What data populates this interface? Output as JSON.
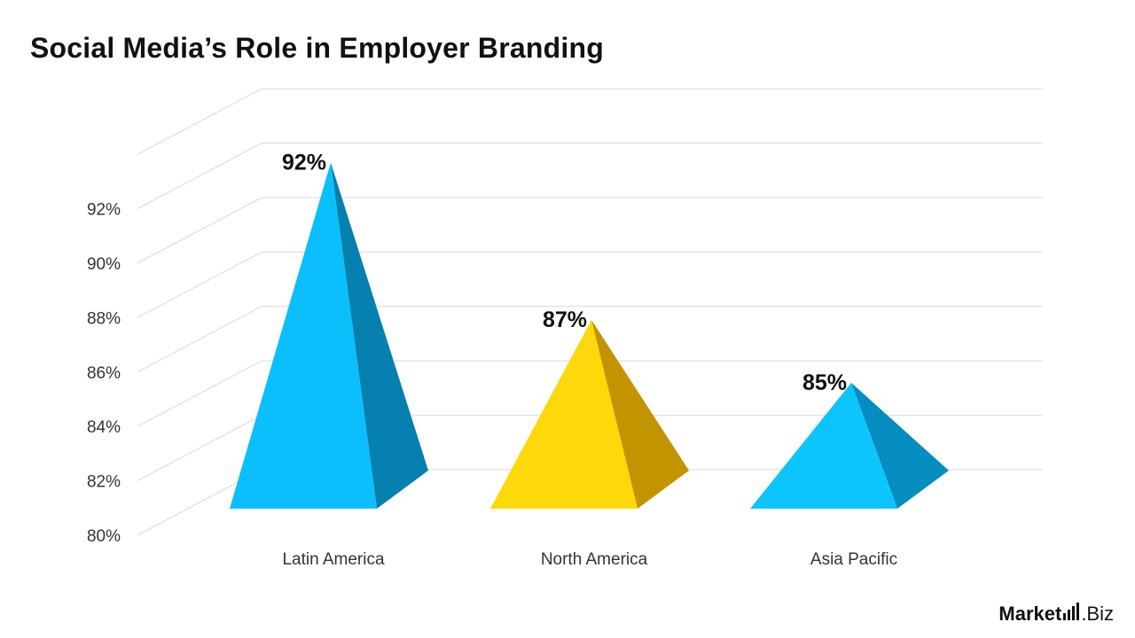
{
  "title": "Social Media’s Role in Employer Branding",
  "logo": {
    "part1": "Market",
    "part2": ".Biz"
  },
  "chart_data": {
    "type": "bar",
    "shape": "3d-pyramid",
    "categories": [
      "Latin America",
      "North America",
      "Asia Pacific"
    ],
    "values": [
      92,
      87,
      85
    ],
    "value_labels": [
      "92%",
      "87%",
      "85%"
    ],
    "ylim": [
      80,
      94
    ],
    "yticks": [
      80,
      82,
      84,
      86,
      88,
      90,
      92
    ],
    "ytick_labels": [
      "80%",
      "82%",
      "84%",
      "86%",
      "88%",
      "90%",
      "92%"
    ],
    "xlabel": "",
    "ylabel": "",
    "grid": true,
    "colors": [
      {
        "front": "#0BBFFC",
        "side": "#0680AE"
      },
      {
        "front": "#FDD80A",
        "side": "#C29500"
      },
      {
        "front": "#0BC5FC",
        "side": "#058DC0"
      }
    ]
  }
}
